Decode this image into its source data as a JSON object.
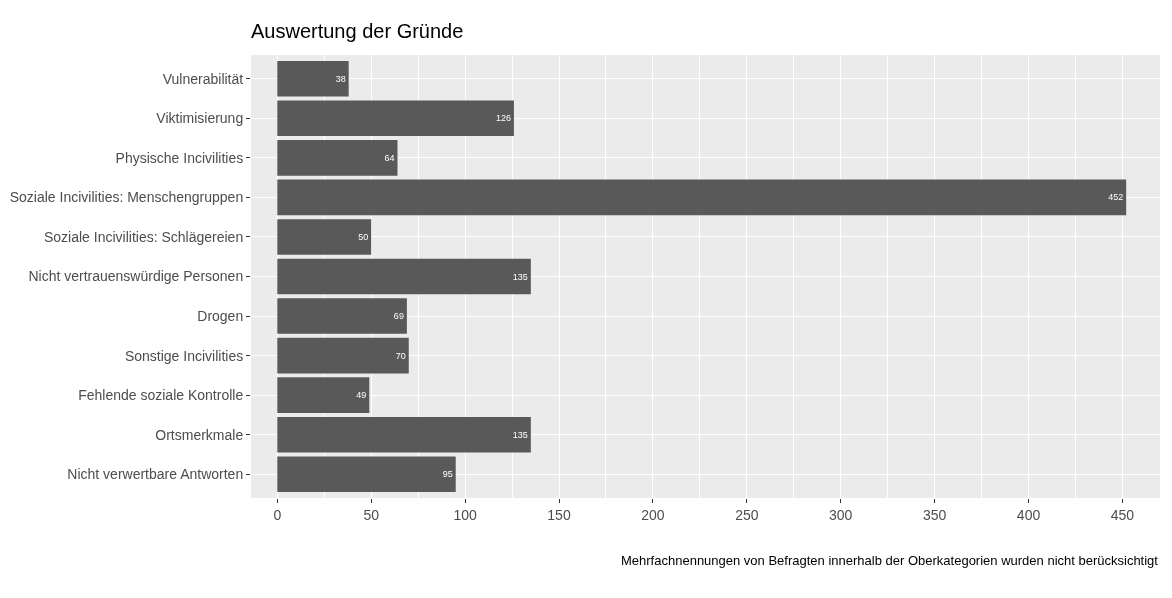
{
  "chart_data": {
    "type": "bar",
    "orientation": "horizontal",
    "title": "Auswertung der Gründe",
    "categories": [
      "Vulnerabilität",
      "Viktimisierung",
      "Physische Incivilities",
      "Soziale Incivilities: Menschengruppen",
      "Soziale Incivilities: Schlägereien",
      "Nicht vertrauenswürdige Personen",
      "Drogen",
      "Sonstige Incivilities",
      "Fehlende soziale Kontrolle",
      "Ortsmerkmale",
      "Nicht verwertbare Antworten"
    ],
    "values": [
      38,
      126,
      64,
      452,
      50,
      135,
      69,
      70,
      49,
      135,
      95
    ],
    "color": "#595959",
    "xlim": [
      -14,
      470
    ],
    "xticks": [
      0,
      50,
      100,
      150,
      200,
      250,
      300,
      350,
      400,
      450
    ],
    "grid": true,
    "data_labels": true,
    "annotations": [
      "Mehrfachnennungen von Befragten innerhalb der Oberkategorien wurden nicht berücksichtigt"
    ]
  }
}
